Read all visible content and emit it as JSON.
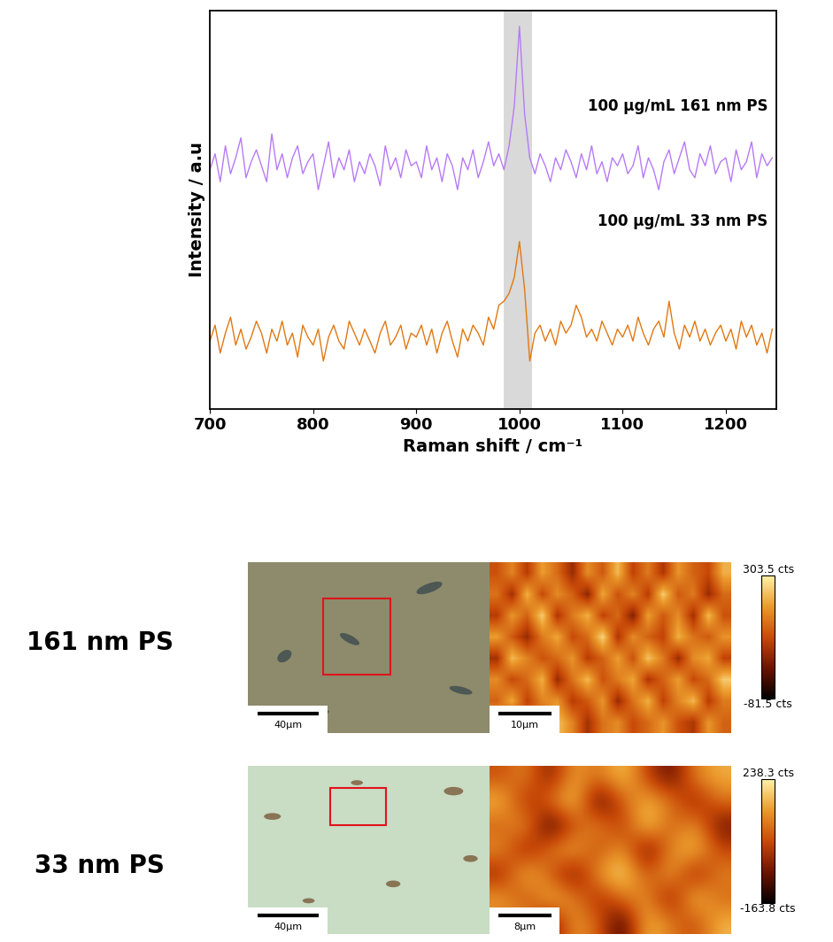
{
  "chart_data": [
    {
      "type": "line",
      "xlabel": "Raman shift / cm⁻¹",
      "ylabel": "Intensity / a.u",
      "xlim": [
        700,
        1249
      ],
      "xticks": [
        700,
        800,
        900,
        1000,
        1100,
        1200
      ],
      "ylim": [
        0,
        100
      ],
      "yticks": [],
      "tick_labels": "x",
      "band": [
        985,
        1012
      ],
      "x": [
        700,
        705,
        710,
        715,
        720,
        725,
        730,
        735,
        740,
        745,
        750,
        755,
        760,
        765,
        770,
        775,
        780,
        785,
        790,
        795,
        800,
        805,
        810,
        815,
        820,
        825,
        830,
        835,
        840,
        845,
        850,
        855,
        860,
        865,
        870,
        875,
        880,
        885,
        890,
        895,
        900,
        905,
        910,
        915,
        920,
        925,
        930,
        935,
        940,
        945,
        950,
        955,
        960,
        965,
        970,
        975,
        980,
        985,
        990,
        995,
        1000,
        1005,
        1010,
        1015,
        1020,
        1025,
        1030,
        1035,
        1040,
        1045,
        1050,
        1055,
        1060,
        1065,
        1070,
        1075,
        1080,
        1085,
        1090,
        1095,
        1100,
        1105,
        1110,
        1115,
        1120,
        1125,
        1130,
        1135,
        1140,
        1145,
        1150,
        1155,
        1160,
        1165,
        1170,
        1175,
        1180,
        1185,
        1190,
        1195,
        1200,
        1205,
        1210,
        1215,
        1220,
        1225,
        1230,
        1235,
        1240,
        1245
      ],
      "series": [
        {
          "name": "100 μg/mL 161 nm PS",
          "color": "#b77af5",
          "values": [
            60,
            64,
            57,
            66,
            59,
            63,
            68,
            58,
            62,
            65,
            61,
            57,
            69,
            60,
            64,
            58,
            63,
            66,
            59,
            62,
            64,
            55,
            61,
            67,
            58,
            63,
            60,
            65,
            57,
            62,
            59,
            64,
            61,
            56,
            66,
            60,
            63,
            58,
            65,
            61,
            62,
            58,
            66,
            60,
            63,
            57,
            64,
            61,
            55,
            63,
            60,
            65,
            58,
            62,
            67,
            61,
            64,
            60,
            66,
            76,
            96,
            74,
            63,
            59,
            64,
            61,
            57,
            63,
            60,
            65,
            62,
            58,
            64,
            60,
            66,
            59,
            62,
            57,
            63,
            61,
            64,
            59,
            61,
            66,
            58,
            63,
            60,
            55,
            62,
            65,
            59,
            63,
            67,
            60,
            58,
            64,
            61,
            66,
            59,
            62,
            63,
            57,
            65,
            60,
            62,
            67,
            58,
            64,
            61,
            63
          ]
        },
        {
          "name": "100 μg/mL 33 nm PS",
          "color": "#e07812",
          "values": [
            17,
            21,
            14,
            19,
            23,
            16,
            20,
            15,
            18,
            22,
            19,
            14,
            20,
            17,
            22,
            16,
            19,
            13,
            21,
            18,
            16,
            20,
            12,
            18,
            21,
            17,
            15,
            22,
            19,
            16,
            20,
            17,
            14,
            19,
            22,
            16,
            18,
            21,
            15,
            19,
            18,
            21,
            16,
            20,
            14,
            19,
            22,
            17,
            13,
            20,
            17,
            21,
            19,
            16,
            23,
            20,
            26,
            27,
            29,
            33,
            42,
            30,
            12,
            19,
            21,
            17,
            20,
            16,
            22,
            19,
            21,
            26,
            23,
            18,
            20,
            17,
            22,
            19,
            16,
            20,
            18,
            21,
            17,
            23,
            19,
            16,
            20,
            22,
            18,
            27,
            19,
            15,
            21,
            18,
            22,
            17,
            20,
            16,
            19,
            21,
            17,
            20,
            15,
            22,
            18,
            21,
            16,
            19,
            14,
            20
          ]
        }
      ]
    },
    {
      "type": "heatmap",
      "title": "161 nm PS",
      "optical_scale_bar": "40µm",
      "scale_bar": "10µm",
      "cells": [
        [
          120,
          180,
          90,
          210,
          150,
          60,
          190,
          130,
          240,
          100,
          170,
          80,
          200,
          140,
          110,
          230
        ],
        [
          160,
          70,
          230,
          110,
          190,
          140,
          50,
          220,
          120,
          180,
          90,
          260,
          130,
          170,
          60,
          150
        ],
        [
          90,
          200,
          140,
          260,
          80,
          170,
          230,
          100,
          150,
          40,
          210,
          130,
          190,
          70,
          240,
          120
        ],
        [
          210,
          130,
          60,
          170,
          220,
          110,
          150,
          270,
          80,
          190,
          140,
          100,
          230,
          160,
          130,
          200
        ],
        [
          70,
          240,
          180,
          120,
          150,
          200,
          90,
          140,
          210,
          120,
          250,
          170,
          60,
          190,
          220,
          100
        ],
        [
          190,
          110,
          150,
          230,
          60,
          160,
          240,
          120,
          170,
          220,
          80,
          140,
          210,
          110,
          150,
          260
        ],
        [
          140,
          220,
          100,
          180,
          200,
          90,
          130,
          200,
          60,
          160,
          230,
          100,
          180,
          240,
          90,
          170
        ],
        [
          230,
          80,
          170,
          130,
          250,
          180,
          70,
          160,
          190,
          110,
          150,
          200,
          120,
          80,
          200,
          140
        ]
      ],
      "colorbar": {
        "range": [
          -81.5,
          303.5
        ],
        "ticks": [
          {
            "value": 303.5,
            "label": "303.5 cts"
          },
          {
            "value": -81.5,
            "label": "-81.5 cts"
          }
        ]
      }
    },
    {
      "type": "heatmap",
      "title": "33 nm PS",
      "optical_scale_bar": "40µm",
      "scale_bar": "8µm",
      "cells": [
        [
          40,
          120,
          -60,
          150,
          80,
          200,
          30,
          -90,
          110,
          160
        ],
        [
          180,
          -20,
          90,
          210,
          -120,
          60,
          170,
          100,
          -40,
          90
        ],
        [
          60,
          150,
          -140,
          40,
          130,
          -10,
          220,
          50,
          140,
          -70
        ],
        [
          130,
          -50,
          100,
          170,
          20,
          150,
          -100,
          120,
          190,
          30
        ],
        [
          -30,
          190,
          60,
          -80,
          140,
          230,
          40,
          160,
          -50,
          110
        ],
        [
          150,
          20,
          180,
          110,
          -20,
          90,
          130,
          -60,
          200,
          70
        ],
        [
          90,
          160,
          -90,
          140,
          70,
          -130,
          180,
          100,
          30,
          170
        ]
      ],
      "colorbar": {
        "range": [
          -163.8,
          238.3
        ],
        "ticks": [
          {
            "value": 238.3,
            "label": "238.3 cts"
          },
          {
            "value": -163.8,
            "label": "-163.8 cts"
          }
        ]
      }
    }
  ]
}
